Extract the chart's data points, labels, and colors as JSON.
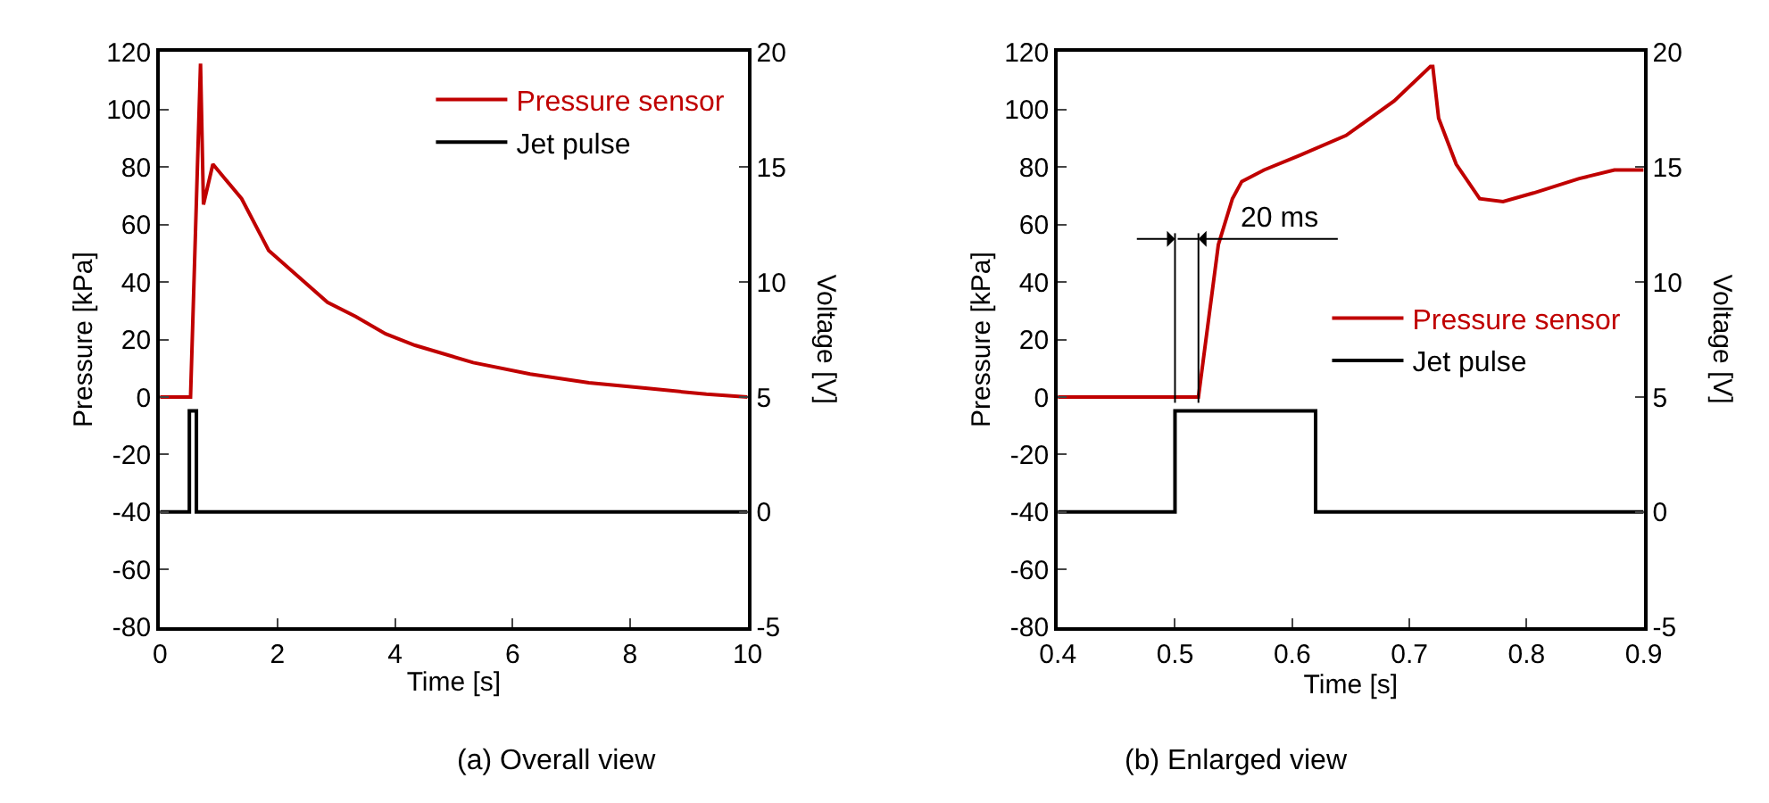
{
  "chart_data": [
    {
      "type": "line",
      "title": "(a) Overall view",
      "xlabel": "Time [s]",
      "ylabel": "Pressure [kPa]",
      "y2label": "Voltage [V]",
      "xlim": [
        0,
        10
      ],
      "xticks": [
        0,
        2,
        4,
        6,
        8,
        10
      ],
      "ylim": [
        -80,
        120
      ],
      "yticks": [
        -80,
        -60,
        -40,
        -20,
        0,
        20,
        40,
        60,
        80,
        100,
        120
      ],
      "y2lim": [
        -5,
        20
      ],
      "y2ticks": [
        -5,
        0,
        5,
        10,
        15,
        20
      ],
      "legend": "top right",
      "series": [
        {
          "name": "Pressure sensor",
          "color": "#c00000",
          "x": [
            0,
            0.52,
            0.69,
            0.74,
            0.9,
            1.39,
            1.85,
            2.35,
            2.85,
            3.33,
            3.84,
            4.34,
            5.33,
            6.3,
            7.3,
            8.3,
            9.3,
            10
          ],
          "values": [
            0,
            0,
            116,
            67,
            81,
            69,
            51,
            42,
            33,
            28,
            22,
            18,
            12,
            8,
            5,
            3,
            1,
            0
          ]
        },
        {
          "name": "Jet pulse",
          "color": "#000000",
          "axis": "y2",
          "x": [
            0,
            0.5,
            0.5,
            0.62,
            0.62,
            10
          ],
          "values": [
            0,
            0,
            4.4,
            4.4,
            0,
            0
          ]
        }
      ]
    },
    {
      "type": "line",
      "title": "(b) Enlarged view",
      "xlabel": "Time [s]",
      "ylabel": "Pressure [kPa]",
      "y2label": "Voltage [V]",
      "xlim": [
        0.4,
        0.9
      ],
      "xticks": [
        0.4,
        0.5,
        0.6,
        0.7,
        0.8,
        0.9
      ],
      "ylim": [
        -80,
        120
      ],
      "yticks": [
        -80,
        -60,
        -40,
        -20,
        0,
        20,
        40,
        60,
        80,
        100,
        120
      ],
      "y2lim": [
        -5,
        20
      ],
      "y2ticks": [
        -5,
        0,
        5,
        10,
        15,
        20
      ],
      "legend": "right",
      "ref_lines": [
        {
          "axis": "x",
          "value": 0.5,
          "label": null
        },
        {
          "axis": "x",
          "value": 0.52,
          "label": "20 ms"
        }
      ],
      "series": [
        {
          "name": "Pressure sensor",
          "color": "#c00000",
          "x": [
            0.4,
            0.52,
            0.537,
            0.549,
            0.557,
            0.576,
            0.606,
            0.646,
            0.687,
            0.718,
            0.72,
            0.725,
            0.74,
            0.76,
            0.78,
            0.806,
            0.845,
            0.875,
            0.9
          ],
          "values": [
            0,
            0,
            53,
            69,
            75,
            79,
            84,
            91,
            103,
            115,
            115,
            97,
            81,
            69,
            68,
            71,
            76,
            79,
            79
          ]
        },
        {
          "name": "Jet pulse",
          "color": "#000000",
          "axis": "y2",
          "x": [
            0.4,
            0.5,
            0.5,
            0.62,
            0.62,
            0.9
          ],
          "values": [
            0,
            0,
            4.4,
            4.4,
            0,
            0
          ]
        }
      ]
    }
  ]
}
